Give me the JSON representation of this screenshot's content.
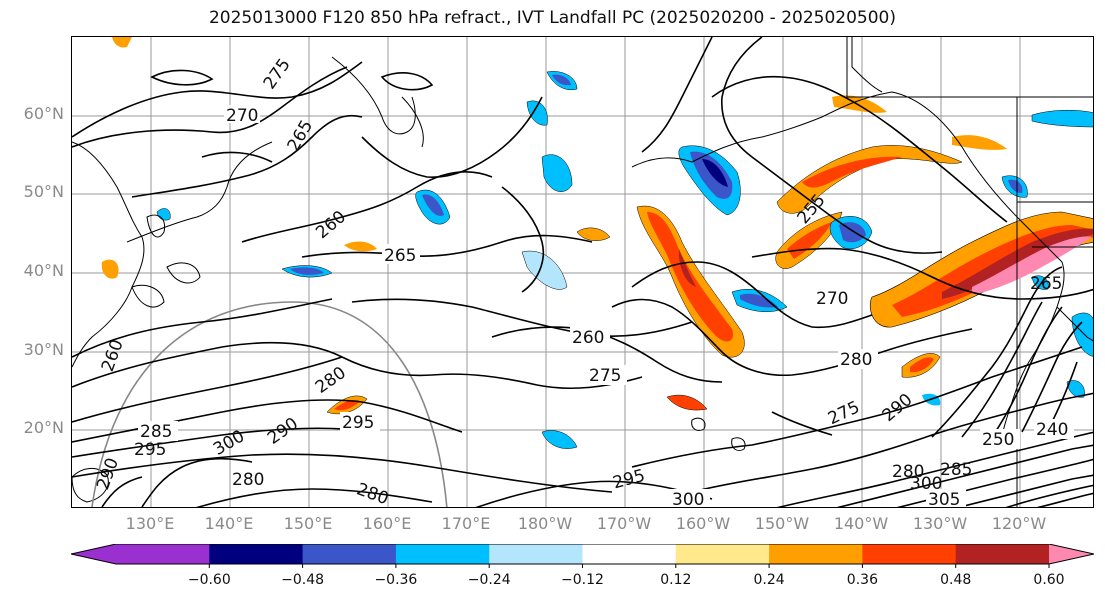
{
  "title": "2025013000 F120 850 hPa refract., IVT Landfall PC (2025020200 - 2025020500)",
  "lat_labels": [
    "60°N",
    "50°N",
    "40°N",
    "30°N",
    "20°N"
  ],
  "lon_labels": [
    "130°E",
    "140°E",
    "150°E",
    "160°E",
    "170°E",
    "180°W",
    "170°W",
    "160°W",
    "150°W",
    "140°W",
    "130°W",
    "120°W"
  ],
  "contour_labels": [
    "270",
    "275",
    "265",
    "260",
    "265",
    "260",
    "275",
    "280",
    "295",
    "285",
    "295",
    "300",
    "290",
    "280",
    "280",
    "260",
    "270",
    "255",
    "280",
    "275",
    "290",
    "265",
    "250",
    "240",
    "295",
    "300",
    "305",
    "280",
    "285",
    "300",
    "290"
  ],
  "colorbar": {
    "ticks": [
      "−0.60",
      "−0.48",
      "−0.36",
      "−0.24",
      "−0.12",
      "0.12",
      "0.24",
      "0.36",
      "0.48",
      "0.60"
    ],
    "colors": [
      "#9b30d0",
      "#00007f",
      "#3a56c8",
      "#00bfff",
      "#b3e5fc",
      "#ffffff",
      "#ffe98a",
      "#ffa000",
      "#ff4000",
      "#b22222",
      "#ff88b0",
      "#ff88b0"
    ]
  }
}
